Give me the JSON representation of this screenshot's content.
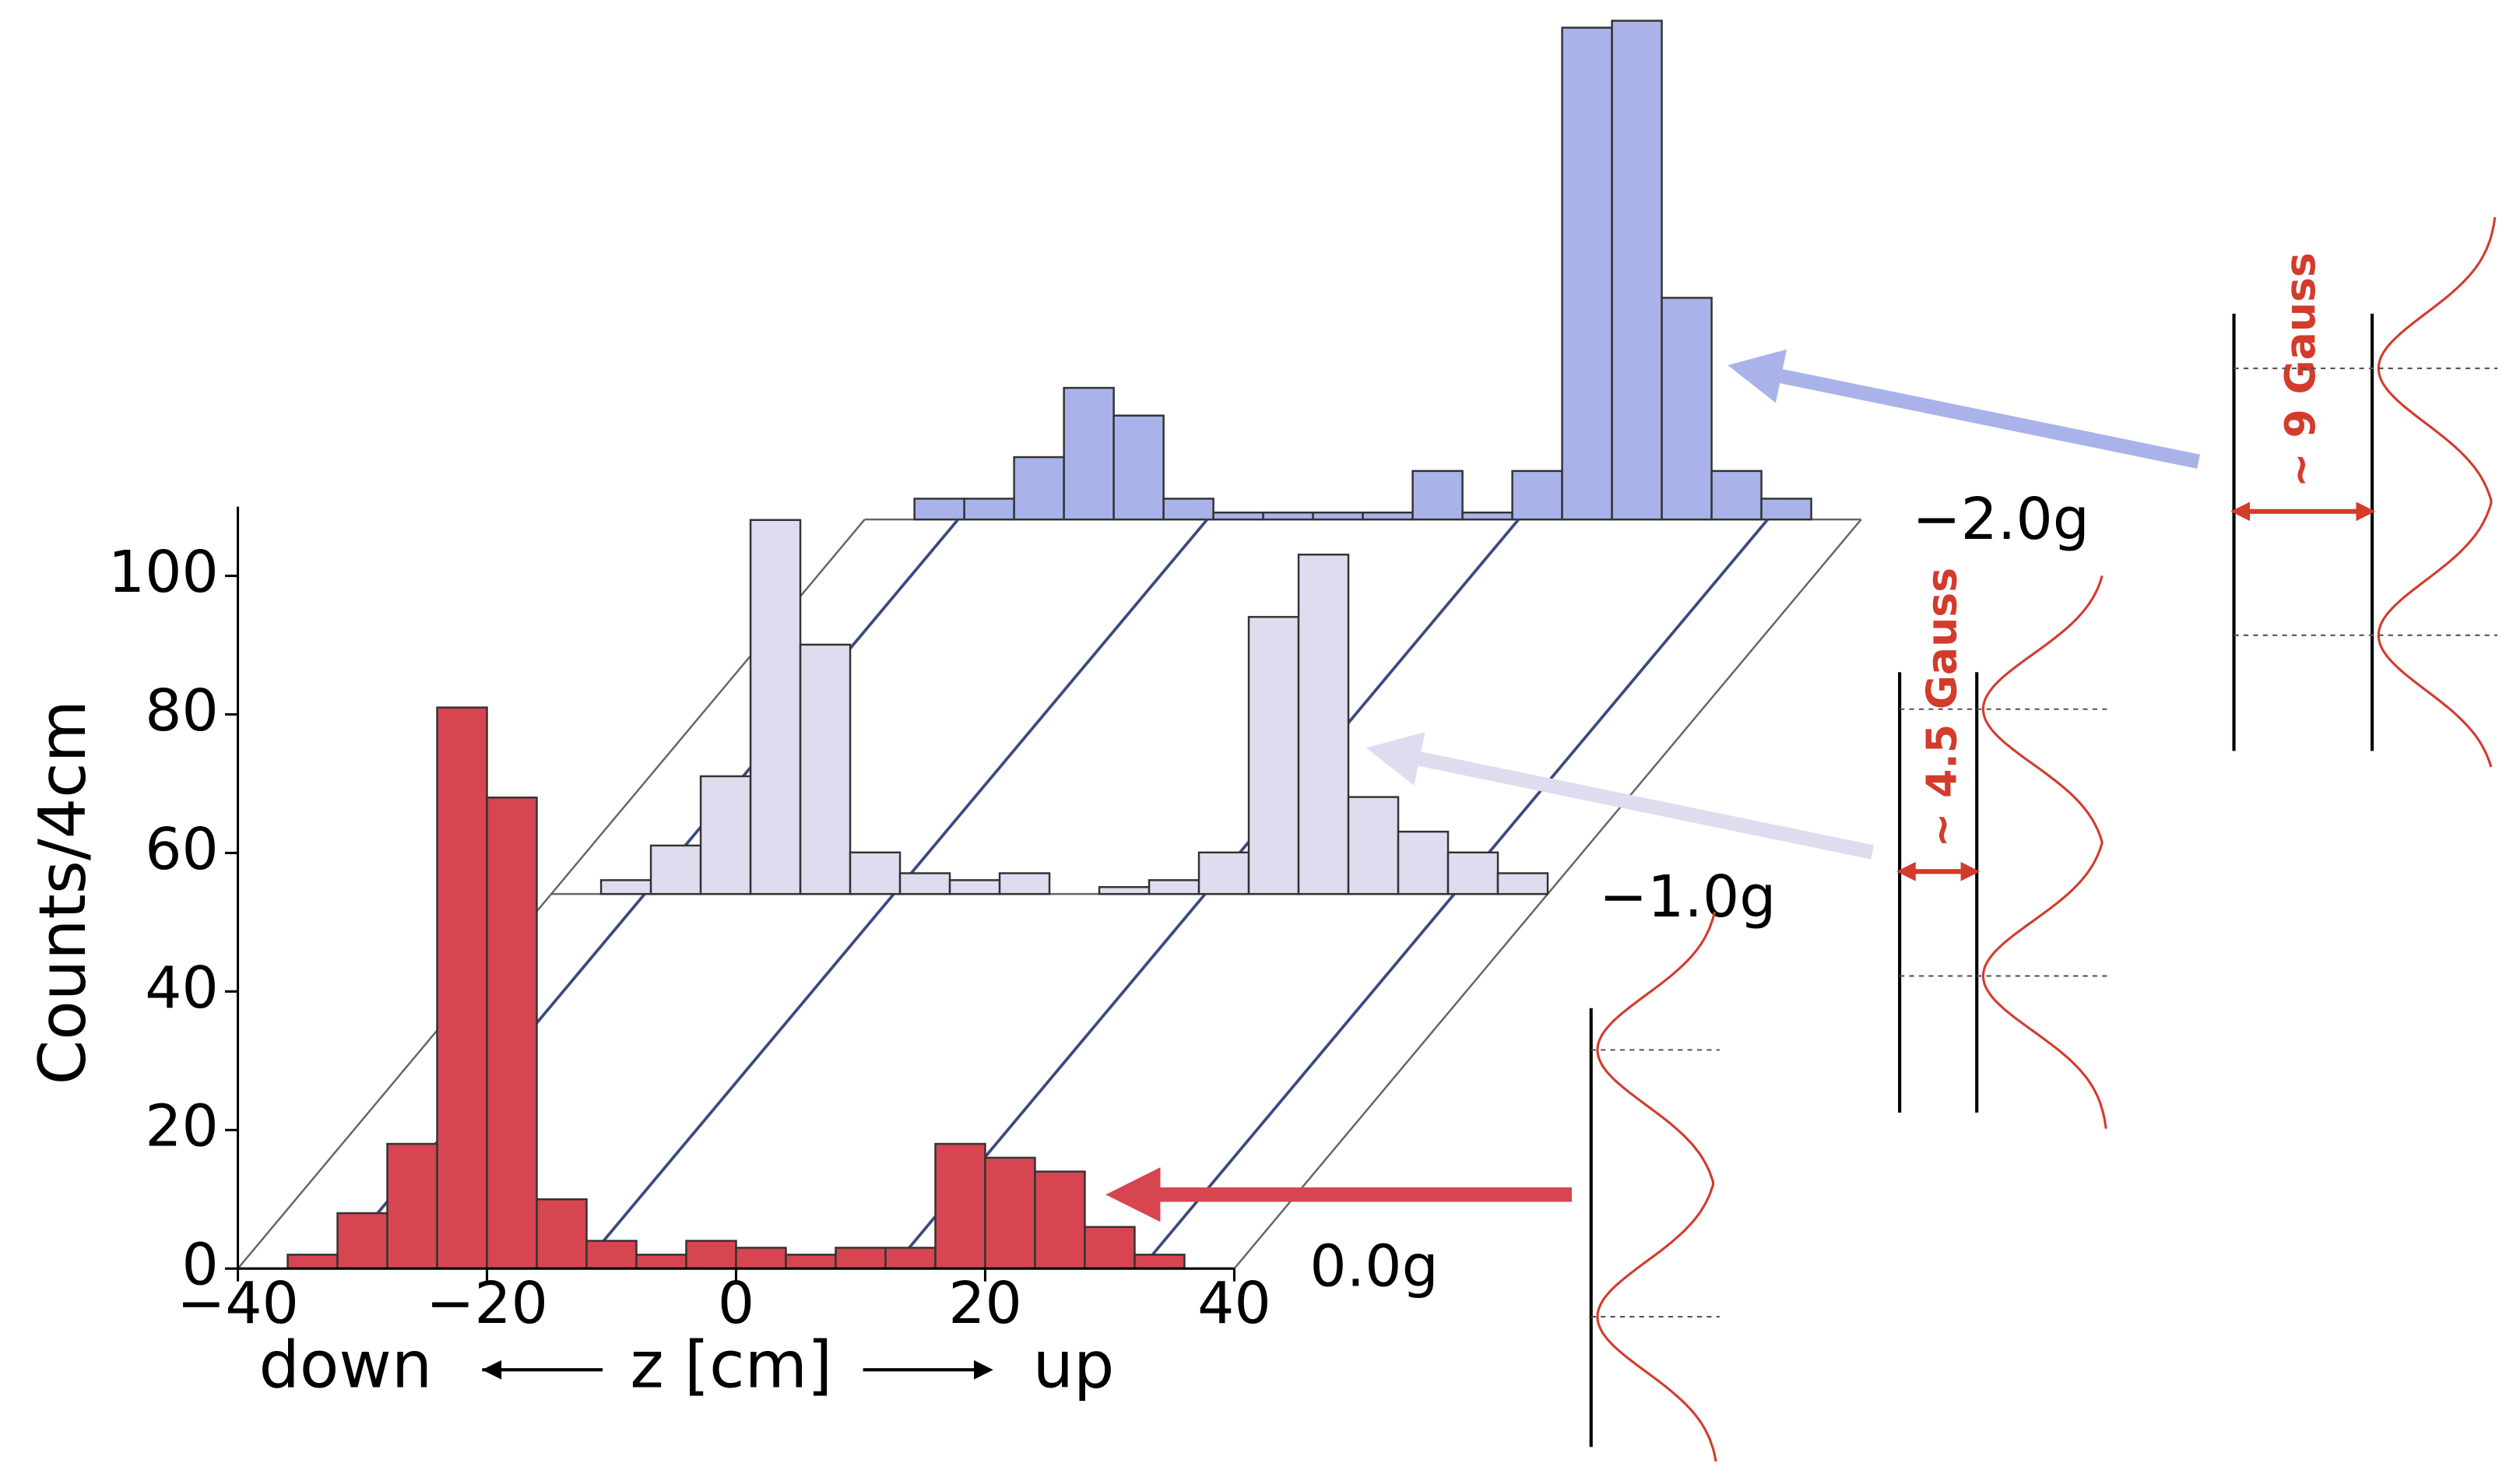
{
  "chart_data": {
    "type": "histogram3d",
    "ylabel": "Counts/4cm",
    "xlabel": "z [cm]",
    "annotations": {
      "left": "down",
      "right": "up",
      "gauss_small": "~ 4.5 Gauss",
      "gauss_large": "~ 9 Gauss"
    },
    "bins": [
      -40,
      -36,
      -32,
      -28,
      -24,
      -20,
      -16,
      -12,
      -8,
      -4,
      0,
      4,
      8,
      12,
      16,
      20,
      24,
      28,
      32,
      36,
      40
    ],
    "series": [
      {
        "name": "0.0g",
        "color": "#d64550",
        "values": [
          0,
          2,
          8,
          18,
          81,
          68,
          10,
          4,
          2,
          4,
          3,
          2,
          3,
          3,
          18,
          16,
          14,
          6,
          2,
          0
        ]
      },
      {
        "name": "−1.0g",
        "color": "#e0dcef",
        "values": [
          0,
          2,
          7,
          17,
          54,
          36,
          6,
          3,
          2,
          3,
          0,
          1,
          2,
          6,
          40,
          49,
          14,
          9,
          6,
          3
        ]
      },
      {
        "name": "−2.0g",
        "color": "#a9b3ea",
        "values": [
          0,
          3,
          3,
          9,
          19,
          15,
          3,
          1,
          1,
          1,
          1,
          7,
          1,
          7,
          71,
          72,
          32,
          7,
          3,
          0
        ]
      }
    ],
    "guide_lines_x": [
      -32.5,
      -12.5,
      12.5,
      32.5
    ],
    "xlim": [
      -40,
      40
    ],
    "ylim": [
      0,
      110
    ],
    "xticks": [
      {
        "value": -40,
        "label": "−40"
      },
      {
        "value": -20,
        "label": "−20"
      },
      0,
      20,
      40
    ],
    "yticks": [
      0,
      20,
      40,
      60,
      80,
      100
    ]
  }
}
